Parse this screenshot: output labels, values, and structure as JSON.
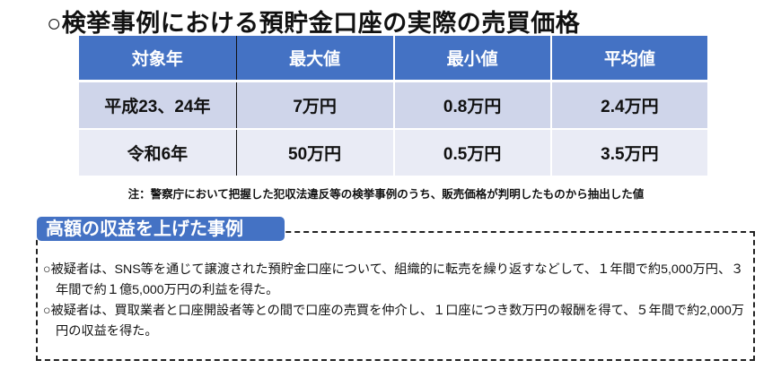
{
  "title": "○検挙事例における預貯金口座の実際の売買価格",
  "table": {
    "headers": [
      "対象年",
      "最大値",
      "最小値",
      "平均値"
    ],
    "rows": [
      [
        "平成23、24年",
        "7万円",
        "0.8万円",
        "2.4万円"
      ],
      [
        "令和6年",
        "50万円",
        "0.5万円",
        "3.5万円"
      ]
    ],
    "header_color": "#4472c4"
  },
  "note": "注：警察庁において把握した犯収法違反等の検挙事例のうち、販売価格が判明したものから抽出した値",
  "cases_box": {
    "label": "高額の収益を上げた事例",
    "items": [
      "○被疑者は、SNS等を通じて譲渡された預貯金口座について、組織的に転売を繰り返すなどして、１年間で約5,000万円、３年間で約１億5,000万円の利益を得た。",
      "○被疑者は、買取業者と口座開設者等との間で口座の売買を仲介し、１口座につき数万円の報酬を得て、５年間で約2,000万円の収益を得た。"
    ]
  }
}
